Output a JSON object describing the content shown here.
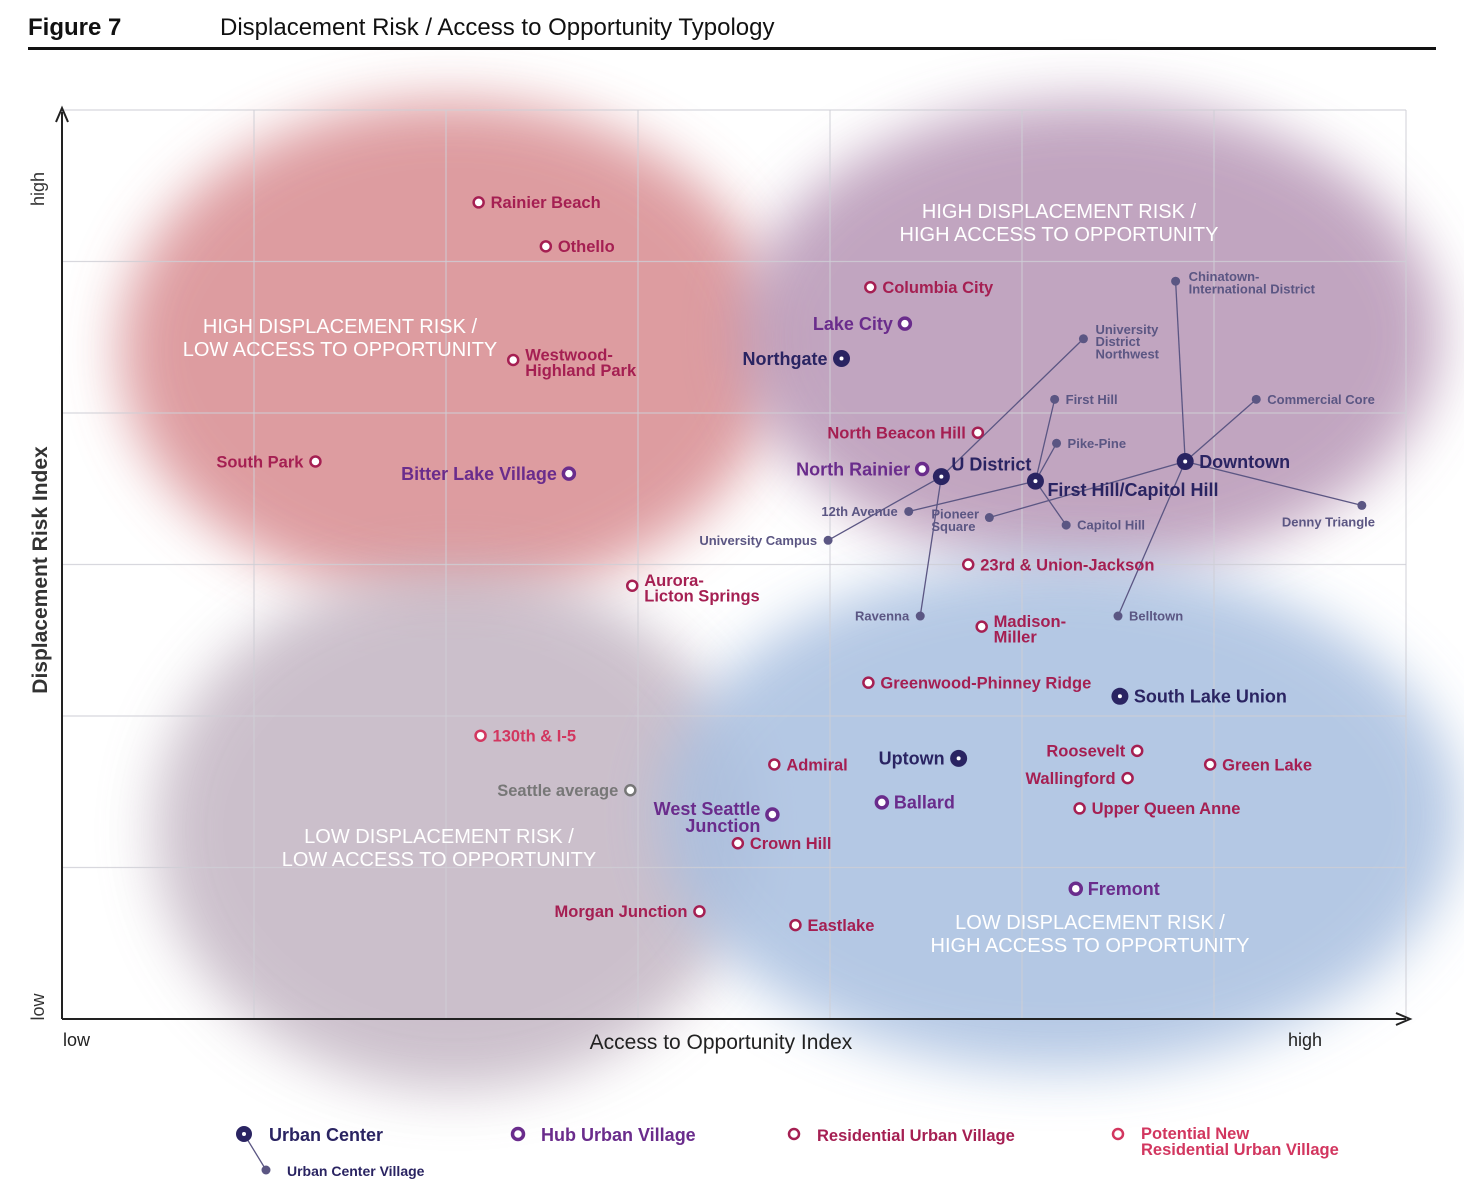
{
  "header": {
    "figure": "Figure 7",
    "title": "Displacement Risk / Access to Opportunity Typology"
  },
  "colors": {
    "urban_center": "#2a2462",
    "hub_urban_village": "#6a2c8c",
    "residential_urban_village": "#a51f52",
    "potential_new_residential_urban_village": "#d2365f",
    "urban_center_village": "#5b5683",
    "seattle_average": "#777777",
    "quadrant_high_risk_low_access": "#d88b90",
    "quadrant_high_risk_high_access": "#b796b6",
    "quadrant_low_risk_low_access": "#c3b5c3",
    "quadrant_low_risk_high_access": "#a8bfe0"
  },
  "chart_data": {
    "type": "scatter",
    "xlabel": "Access to Opportunity Index",
    "ylabel": "Displacement Risk Index",
    "x_tick_labels": [
      "low",
      "high"
    ],
    "y_tick_labels": [
      "low",
      "high"
    ],
    "xlim": [
      0,
      7
    ],
    "ylim": [
      0,
      6
    ],
    "grid": true,
    "legend_placement": "bottom",
    "quadrants": [
      {
        "label": "HIGH DISPLACEMENT RISK /\nLOW ACCESS TO OPPORTUNITY",
        "key": "high_risk_low_access"
      },
      {
        "label": "HIGH DISPLACEMENT RISK /\nHIGH ACCESS TO OPPORTUNITY",
        "key": "high_risk_high_access"
      },
      {
        "label": "LOW DISPLACEMENT RISK /\nLOW ACCESS TO OPPORTUNITY",
        "key": "low_risk_low_access"
      },
      {
        "label": "LOW DISPLACEMENT RISK /\nHIGH ACCESS TO OPPORTUNITY",
        "key": "low_risk_high_access"
      }
    ],
    "legend": [
      {
        "type": "urban_center",
        "label": "Urban Center"
      },
      {
        "type": "urban_center_village",
        "label": "Urban Center Village"
      },
      {
        "type": "hub_urban_village",
        "label": "Hub Urban Village"
      },
      {
        "type": "residential_urban_village",
        "label": "Residential Urban Village"
      },
      {
        "type": "potential_new_residential_urban_village",
        "label": "Potential New\nResidential Urban Village"
      }
    ],
    "points": [
      {
        "label": "Rainier Beach",
        "type": "residential_urban_village",
        "x": 2.17,
        "y": 5.39
      },
      {
        "label": "Othello",
        "type": "residential_urban_village",
        "x": 2.52,
        "y": 5.1
      },
      {
        "label": "Columbia City",
        "type": "residential_urban_village",
        "x": 4.21,
        "y": 4.83
      },
      {
        "label": "Westwood-\nHighland Park",
        "type": "residential_urban_village",
        "x": 2.35,
        "y": 4.35
      },
      {
        "label": "South Park",
        "type": "residential_urban_village",
        "x": 1.32,
        "y": 3.68
      },
      {
        "label": "North Beacon Hill",
        "type": "residential_urban_village",
        "x": 4.77,
        "y": 3.87
      },
      {
        "label": "23rd & Union-Jackson",
        "type": "residential_urban_village",
        "x": 4.72,
        "y": 3.0
      },
      {
        "label": "Aurora-\nLicton Springs",
        "type": "residential_urban_village",
        "x": 2.97,
        "y": 2.86
      },
      {
        "label": "Madison-\nMiller",
        "type": "residential_urban_village",
        "x": 4.79,
        "y": 2.59
      },
      {
        "label": "Greenwood-Phinney Ridge",
        "type": "residential_urban_village",
        "x": 4.2,
        "y": 2.22
      },
      {
        "label": "Admiral",
        "type": "residential_urban_village",
        "x": 3.71,
        "y": 1.68
      },
      {
        "label": "Roosevelt",
        "type": "residential_urban_village",
        "x": 5.6,
        "y": 1.77
      },
      {
        "label": "Wallingford",
        "type": "residential_urban_village",
        "x": 5.55,
        "y": 1.59
      },
      {
        "label": "Green Lake",
        "type": "residential_urban_village",
        "x": 5.98,
        "y": 1.68
      },
      {
        "label": "Upper Queen Anne",
        "type": "residential_urban_village",
        "x": 5.3,
        "y": 1.39
      },
      {
        "label": "Crown Hill",
        "type": "residential_urban_village",
        "x": 3.52,
        "y": 1.16
      },
      {
        "label": "Morgan Junction",
        "type": "residential_urban_village",
        "x": 3.32,
        "y": 0.71
      },
      {
        "label": "Eastlake",
        "type": "residential_urban_village",
        "x": 3.82,
        "y": 0.62
      },
      {
        "label": "130th & I-5",
        "type": "potential_new_residential_urban_village",
        "x": 2.18,
        "y": 1.87
      },
      {
        "label": "Lake City",
        "type": "hub_urban_village",
        "x": 4.39,
        "y": 4.59
      },
      {
        "label": "Bitter Lake Village",
        "type": "hub_urban_village",
        "x": 2.64,
        "y": 3.6
      },
      {
        "label": "North Rainier",
        "type": "hub_urban_village",
        "x": 4.48,
        "y": 3.63
      },
      {
        "label": "West Seattle\nJunction",
        "type": "hub_urban_village",
        "x": 3.7,
        "y": 1.35
      },
      {
        "label": "Ballard",
        "type": "hub_urban_village",
        "x": 4.27,
        "y": 1.43
      },
      {
        "label": "Fremont",
        "type": "hub_urban_village",
        "x": 5.28,
        "y": 0.86
      },
      {
        "label": "Northgate",
        "type": "urban_center",
        "x": 4.06,
        "y": 4.36
      },
      {
        "label": "U District",
        "type": "urban_center",
        "x": 4.58,
        "y": 3.58
      },
      {
        "label": "First Hill/Capitol Hill",
        "type": "urban_center",
        "x": 5.07,
        "y": 3.55
      },
      {
        "label": "Downtown",
        "type": "urban_center",
        "x": 5.85,
        "y": 3.68
      },
      {
        "label": "South Lake Union",
        "type": "urban_center",
        "x": 5.51,
        "y": 2.13
      },
      {
        "label": "Uptown",
        "type": "urban_center",
        "x": 4.67,
        "y": 1.72
      },
      {
        "label": "University\nDistrict\nNorthwest",
        "type": "urban_center_village",
        "center": "U District",
        "x": 5.32,
        "y": 4.49
      },
      {
        "label": "University Campus",
        "type": "urban_center_village",
        "center": "U District",
        "x": 3.99,
        "y": 3.16
      },
      {
        "label": "Ravenna",
        "type": "urban_center_village",
        "center": "U District",
        "x": 4.47,
        "y": 2.66
      },
      {
        "label": "12th Avenue",
        "type": "urban_center_village",
        "center": "First Hill/Capitol Hill",
        "x": 4.41,
        "y": 3.35
      },
      {
        "label": "First Hill",
        "type": "urban_center_village",
        "center": "First Hill/Capitol Hill",
        "x": 5.17,
        "y": 4.09
      },
      {
        "label": "Pike-Pine",
        "type": "urban_center_village",
        "center": "First Hill/Capitol Hill",
        "x": 5.18,
        "y": 3.8
      },
      {
        "label": "Capitol Hill",
        "type": "urban_center_village",
        "center": "First Hill/Capitol Hill",
        "x": 5.23,
        "y": 3.26
      },
      {
        "label": "Chinatown-\nInternational District",
        "type": "urban_center_village",
        "center": "Downtown",
        "x": 5.8,
        "y": 4.87
      },
      {
        "label": "Commercial Core",
        "type": "urban_center_village",
        "center": "Downtown",
        "x": 6.22,
        "y": 4.09
      },
      {
        "label": "Pioneer\nSquare",
        "type": "urban_center_village",
        "center": "Downtown",
        "x": 4.83,
        "y": 3.31
      },
      {
        "label": "Denny Triangle",
        "type": "urban_center_village",
        "center": "Downtown",
        "x": 6.77,
        "y": 3.39
      },
      {
        "label": "Belltown",
        "type": "urban_center_village",
        "center": "Downtown",
        "x": 5.5,
        "y": 2.66
      },
      {
        "label": "Seattle average",
        "type": "seattle_average",
        "x": 2.96,
        "y": 1.51
      }
    ]
  }
}
